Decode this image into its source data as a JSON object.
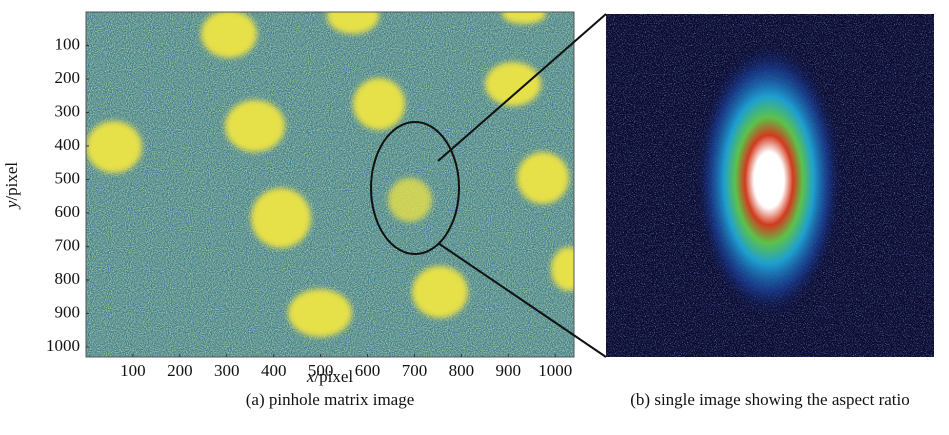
{
  "panel_a": {
    "x_axis": {
      "var": "x",
      "unit": "/pixel",
      "ticks": [
        100,
        200,
        300,
        400,
        500,
        600,
        700,
        800,
        900,
        1000
      ],
      "xlim": [
        0,
        1040
      ]
    },
    "y_axis": {
      "var": "y",
      "unit": "/pixel",
      "ticks": [
        100,
        200,
        300,
        400,
        500,
        600,
        700,
        800,
        900,
        1000
      ],
      "ylim": [
        0,
        1030
      ]
    },
    "caption": "(a) pinhole matrix image"
  },
  "panel_b": {
    "caption": "(b) single image showing the aspect ratio"
  }
}
